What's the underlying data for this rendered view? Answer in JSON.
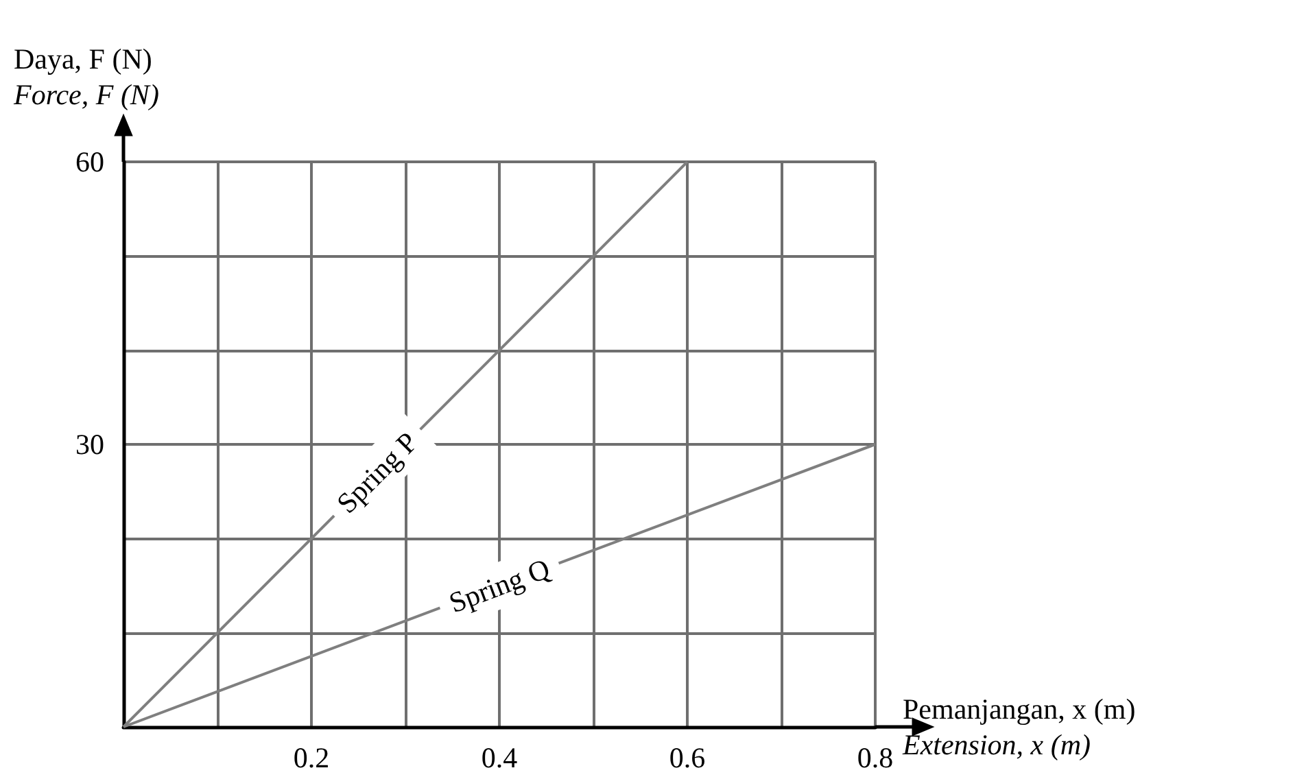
{
  "chart_data": {
    "type": "line",
    "xlabel": "Pemanjangan, x (m)\nExtension, x (m)",
    "ylabel": "Daya, F (N)\nForce, F (N)",
    "series": [
      {
        "name": "Spring P",
        "color": "#7f7f7f",
        "x": [
          0,
          0.6
        ],
        "values": [
          0,
          60
        ]
      },
      {
        "name": "Spring Q",
        "color": "#7f7f7f",
        "x": [
          0,
          0.8
        ],
        "values": [
          0,
          30
        ]
      }
    ],
    "xlim": [
      0,
      0.8
    ],
    "xticks": [
      {
        "value": 0.1,
        "label": null
      },
      0.2,
      {
        "value": 0.3,
        "label": null
      },
      0.4,
      {
        "value": 0.5,
        "label": null
      },
      0.6,
      {
        "value": 0.7,
        "label": null
      },
      0.8
    ],
    "ylim": [
      0,
      60
    ],
    "yticks": [
      {
        "value": 10,
        "label": null
      },
      {
        "value": 20,
        "label": null
      },
      30,
      {
        "value": 40,
        "label": null
      },
      {
        "value": 50,
        "label": null
      },
      60
    ],
    "grid": true
  }
}
